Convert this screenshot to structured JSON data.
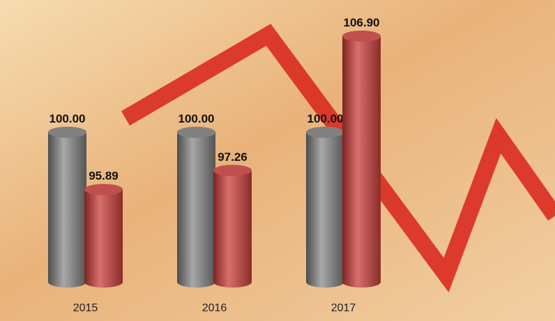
{
  "chart_data": {
    "type": "bar",
    "categories": [
      "2015",
      "2016",
      "2017"
    ],
    "series": [
      {
        "color": "#808080",
        "values": [
          100,
          100,
          100
        ],
        "value_labels": [
          "100.00",
          "100.00",
          "100.00"
        ]
      },
      {
        "color": "#c0504d",
        "values": [
          95.89,
          97.26,
          106.9
        ],
        "value_labels": [
          "95.89",
          "97.26",
          "106.90"
        ]
      }
    ],
    "ylim": [
      89.25,
      109
    ]
  }
}
